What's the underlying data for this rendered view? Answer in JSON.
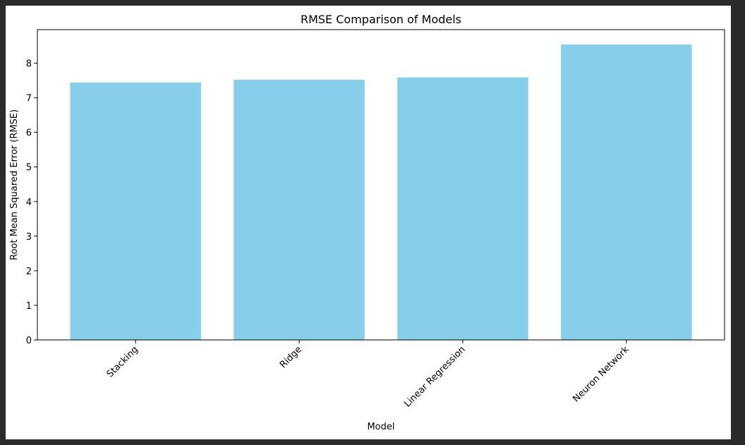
{
  "colors": {
    "bar": "#87ceeb",
    "axis": "#000000",
    "background": "#ffffff",
    "frame": "#2b2b2b"
  },
  "chart_data": {
    "type": "bar",
    "title": "RMSE Comparison of Models",
    "xlabel": "Model",
    "ylabel": "Root Mean Squared Error (RMSE)",
    "categories": [
      "Stacking",
      "Ridge",
      "Linear Regression",
      "Neuron Network"
    ],
    "values": [
      7.44,
      7.52,
      7.59,
      8.54
    ],
    "ylim": [
      0,
      8.97
    ],
    "yticks": [
      0,
      1,
      2,
      3,
      4,
      5,
      6,
      7,
      8
    ],
    "grid": false,
    "legend": "none"
  }
}
